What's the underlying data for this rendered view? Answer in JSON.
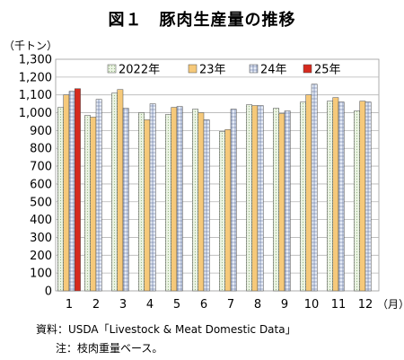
{
  "chart_data": {
    "type": "bar",
    "title": "図１　豚肉生産量の推移",
    "unit_label": "（千トン）",
    "x_unit_label": "（月）",
    "categories": [
      "1",
      "2",
      "3",
      "4",
      "5",
      "6",
      "7",
      "8",
      "9",
      "10",
      "11",
      "12"
    ],
    "series": [
      {
        "name": "2022年",
        "color": "#e3efd9",
        "pattern": "dotted",
        "values": [
          1030,
          985,
          1110,
          1000,
          990,
          1020,
          895,
          1045,
          1025,
          1060,
          1065,
          1010
        ]
      },
      {
        "name": "23年",
        "color": "#f6c97a",
        "pattern": "solid",
        "values": [
          1100,
          975,
          1130,
          960,
          1030,
          1000,
          905,
          1040,
          995,
          1100,
          1085,
          1065
        ]
      },
      {
        "name": "24年",
        "color": "#dce6f5",
        "pattern": "crosshatch",
        "values": [
          1120,
          1075,
          1025,
          1050,
          1035,
          960,
          1020,
          1040,
          1010,
          1160,
          1060,
          1060
        ]
      },
      {
        "name": "25年",
        "color": "#d62a1e",
        "pattern": "solid",
        "values": [
          1135,
          null,
          null,
          null,
          null,
          null,
          null,
          null,
          null,
          null,
          null,
          null
        ]
      }
    ],
    "ylim": [
      0,
      1300
    ],
    "yticks": [
      "0",
      "100",
      "200",
      "300",
      "400",
      "500",
      "600",
      "700",
      "800",
      "900",
      "1,000",
      "1,100",
      "1,200",
      "1,300"
    ],
    "grid": true,
    "legend_position": "top"
  },
  "source": "資料：USDA「Livestock & Meat Domestic Data」",
  "note": "注：枝肉重量ベース。"
}
